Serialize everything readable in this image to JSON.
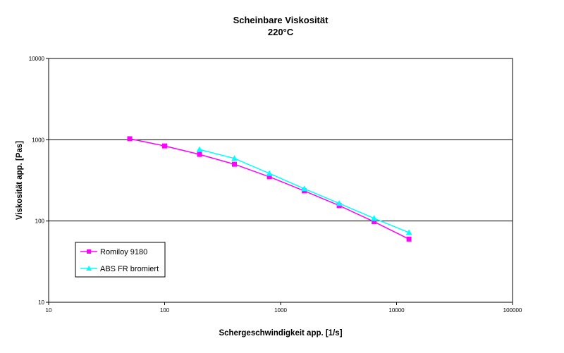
{
  "chart_data": {
    "type": "line",
    "title": "Scheinbare Viskosität",
    "subtitle": "220°C",
    "xlabel": "Schergeschwindigkeit app. [1/s]",
    "ylabel": "Viskosität app. [Pas]",
    "x_scale": "log",
    "y_scale": "log",
    "xlim": [
      10,
      100000
    ],
    "ylim": [
      10,
      10000
    ],
    "x_ticks": [
      "10",
      "100",
      "1000",
      "10000",
      "100000"
    ],
    "y_ticks": [
      "10",
      "100",
      "1000",
      "10000"
    ],
    "grid": "horizontal major lines",
    "legend_position": "lower-left",
    "series": [
      {
        "name": "Romiloy 9180",
        "color": "#ff00ff",
        "marker": "square",
        "x": [
          50,
          100,
          200,
          400,
          800,
          1600,
          3200,
          6400,
          12800
        ],
        "y": [
          1030,
          840,
          660,
          500,
          350,
          235,
          155,
          98,
          60
        ]
      },
      {
        "name": "ABS FR bromiert",
        "color": "#00ffff",
        "marker": "triangle",
        "x": [
          200,
          400,
          800,
          1600,
          3200,
          6400,
          12800
        ],
        "y": [
          760,
          590,
          385,
          250,
          165,
          108,
          72
        ]
      }
    ]
  }
}
